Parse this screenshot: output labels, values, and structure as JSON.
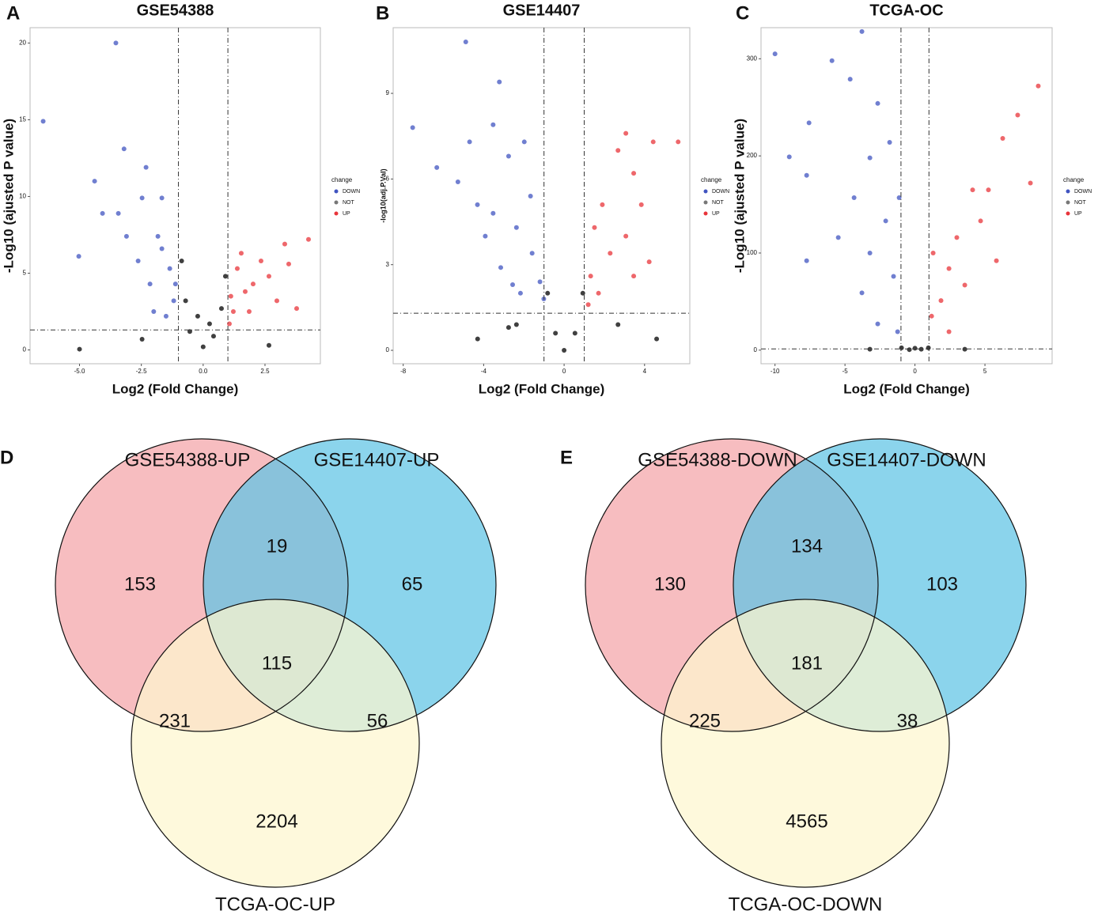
{
  "chart_data": [
    {
      "type": "scatter",
      "panel": "A",
      "title": "GSE54388",
      "x_label": "Log2 (Fold Change)",
      "y_label": "-Log10 (ajusted P value)",
      "xlim": [
        -7,
        4.74
      ],
      "ylim": [
        -0.9,
        21
      ],
      "xticks": [
        {
          "value": -5,
          "label": "-5.0"
        },
        -2.5,
        {
          "value": 0,
          "label": "0.0"
        },
        2.5
      ],
      "yticks": [
        0,
        5,
        10,
        15,
        20
      ],
      "thresholds": {
        "x": [
          -1,
          1
        ],
        "y": 1.3
      },
      "legend_title": "change",
      "series": [
        {
          "name": "DOWN",
          "color": "#4054c0",
          "x": [
            -3.53,
            -6.47,
            -3.2,
            -4.39,
            -2.31,
            -5.03,
            -3.43,
            -1.67,
            -1.83,
            -2.63,
            -1.35,
            -1.19,
            -2.15,
            -3.1,
            -4.07,
            -1.5,
            -2.0,
            -2.47,
            -1.12,
            -1.67
          ],
          "values": [
            20.0,
            14.9,
            13.1,
            11.0,
            11.9,
            6.1,
            8.9,
            9.9,
            7.4,
            5.8,
            5.3,
            3.2,
            4.3,
            7.4,
            8.9,
            2.2,
            2.5,
            9.9,
            4.3,
            6.6
          ]
        },
        {
          "name": "NOT",
          "color": "#000000",
          "x": [
            0,
            -0.54,
            0.42,
            -0.87,
            0.9,
            -0.22,
            0.26,
            -0.71,
            0.74,
            -2.47,
            2.66,
            -5.0
          ],
          "values": [
            0.2,
            1.2,
            0.9,
            5.8,
            4.8,
            2.2,
            1.7,
            3.2,
            2.7,
            0.7,
            0.3,
            0.05
          ]
        },
        {
          "name": "UP",
          "color": "#e8343a",
          "x": [
            4.26,
            3.3,
            2.34,
            1.38,
            1.7,
            2.98,
            1.22,
            2.02,
            2.66,
            3.78,
            1.12,
            1.54,
            3.46,
            1.06,
            1.86
          ],
          "values": [
            7.2,
            6.9,
            5.8,
            5.3,
            3.8,
            3.2,
            2.5,
            4.3,
            4.8,
            2.7,
            3.5,
            6.3,
            5.6,
            1.7,
            2.5
          ]
        }
      ]
    },
    {
      "type": "scatter",
      "panel": "B",
      "title": "GSE14407",
      "x_label": "Log2 (Fold Change)",
      "y_label": "-log10(adj.P.Val)",
      "xlim": [
        -8.5,
        6.25
      ],
      "ylim": [
        -0.47,
        11.3
      ],
      "xticks": [
        -8,
        -4,
        0,
        4
      ],
      "yticks": [
        0,
        3,
        6,
        9
      ],
      "thresholds": {
        "x": [
          -1,
          1
        ],
        "y": 1.3
      },
      "legend_title": "change",
      "series": [
        {
          "name": "DOWN",
          "color": "#4054c0",
          "x": [
            -4.89,
            -7.53,
            -6.33,
            -3.22,
            -3.53,
            -4.7,
            -5.28,
            -4.31,
            -2.76,
            -1.98,
            -3.92,
            -2.37,
            -1.59,
            -1.2,
            -3.15,
            -2.17,
            -1.01,
            -3.53,
            -1.67,
            -2.56
          ],
          "values": [
            10.8,
            7.8,
            6.4,
            9.4,
            7.9,
            7.3,
            5.9,
            5.1,
            6.8,
            7.3,
            4.0,
            4.3,
            3.4,
            2.4,
            2.9,
            2.0,
            1.8,
            4.8,
            5.4,
            2.3
          ]
        },
        {
          "name": "NOT",
          "color": "#000000",
          "x": [
            0,
            -0.43,
            0.54,
            -0.82,
            0.93,
            -2.37,
            2.68,
            -4.3,
            4.6,
            -2.76
          ],
          "values": [
            0,
            0.6,
            0.6,
            2.0,
            2.0,
            0.9,
            0.9,
            0.4,
            0.4,
            0.8
          ]
        },
        {
          "name": "UP",
          "color": "#e8343a",
          "x": [
            5.67,
            4.43,
            3.07,
            2.68,
            3.46,
            3.84,
            1.9,
            1.51,
            2.29,
            1.32,
            3.07,
            4.23,
            1.71,
            1.2,
            3.46
          ],
          "values": [
            7.3,
            7.3,
            7.6,
            7.0,
            6.2,
            5.1,
            5.1,
            4.3,
            3.4,
            2.6,
            4.0,
            3.1,
            2.0,
            1.6,
            2.6
          ]
        }
      ]
    },
    {
      "type": "scatter",
      "panel": "C",
      "title": "TCGA-OC",
      "x_label": "Log2 (Fold Change)",
      "y_label": "-Log10 (ajusted P value)",
      "xlim": [
        -11,
        9.8
      ],
      "ylim": [
        -14,
        332
      ],
      "xticks": [
        -10,
        -5,
        0,
        5
      ],
      "yticks": [
        0,
        100,
        200,
        300
      ],
      "thresholds": {
        "x": [
          -1,
          1
        ],
        "y": 1.3
      },
      "legend_title": "change",
      "series": [
        {
          "name": "DOWN",
          "color": "#4054c0",
          "x": [
            -10,
            -5.93,
            -7.57,
            -8.98,
            -7.74,
            -7.74,
            -3.79,
            -4.63,
            -2.66,
            -3.22,
            -4.35,
            -2.09,
            -1.53,
            -2.66,
            -3.79,
            -1.24,
            -5.48,
            -1.81,
            -3.22,
            -1.13
          ],
          "values": [
            305,
            298,
            234,
            199,
            180,
            92,
            328,
            279,
            254,
            198,
            157,
            133,
            76,
            27,
            59,
            19,
            116,
            214,
            100,
            157
          ]
        },
        {
          "name": "NOT",
          "color": "#000000",
          "x": [
            0,
            -0.4,
            0.45,
            -0.96,
            0.96,
            -3.22,
            3.56
          ],
          "values": [
            2,
            0.5,
            1,
            2.4,
            2.4,
            1,
            1
          ]
        },
        {
          "name": "UP",
          "color": "#e8343a",
          "x": [
            8.81,
            7.34,
            8.25,
            6.27,
            5.25,
            4.69,
            4.12,
            2.99,
            2.43,
            1.3,
            1.86,
            3.56,
            1.19,
            5.82,
            2.43
          ],
          "values": [
            272,
            242,
            172,
            218,
            165,
            133,
            165,
            116,
            84,
            100,
            51,
            67,
            35,
            92,
            19
          ]
        }
      ]
    },
    {
      "type": "venn",
      "panel": "D",
      "sets": [
        {
          "name": "GSE54388-UP",
          "color": "#f4a4a8"
        },
        {
          "name": "GSE14407-UP",
          "color": "#5ec4e4"
        },
        {
          "name": "TCGA-OC-UP",
          "color": "#fdf7cf"
        }
      ],
      "regions": [
        {
          "sets": [
            0
          ],
          "value": 153
        },
        {
          "sets": [
            0,
            1
          ],
          "value": 19
        },
        {
          "sets": [
            1
          ],
          "value": 65
        },
        {
          "sets": [
            0,
            1,
            2
          ],
          "value": 115
        },
        {
          "sets": [
            0,
            2
          ],
          "value": 231
        },
        {
          "sets": [
            1,
            2
          ],
          "value": 56
        },
        {
          "sets": [
            2
          ],
          "value": 2204
        }
      ]
    },
    {
      "type": "venn",
      "panel": "E",
      "sets": [
        {
          "name": "GSE54388-DOWN",
          "color": "#f4a4a8"
        },
        {
          "name": "GSE14407-DOWN",
          "color": "#5ec4e4"
        },
        {
          "name": "TCGA-OC-DOWN",
          "color": "#fdf7cf"
        }
      ],
      "regions": [
        {
          "sets": [
            0
          ],
          "value": 130
        },
        {
          "sets": [
            0,
            1
          ],
          "value": 134
        },
        {
          "sets": [
            1
          ],
          "value": 103
        },
        {
          "sets": [
            0,
            1,
            2
          ],
          "value": 181
        },
        {
          "sets": [
            0,
            2
          ],
          "value": 225
        },
        {
          "sets": [
            1,
            2
          ],
          "value": 38
        },
        {
          "sets": [
            2
          ],
          "value": 4565
        }
      ]
    }
  ]
}
